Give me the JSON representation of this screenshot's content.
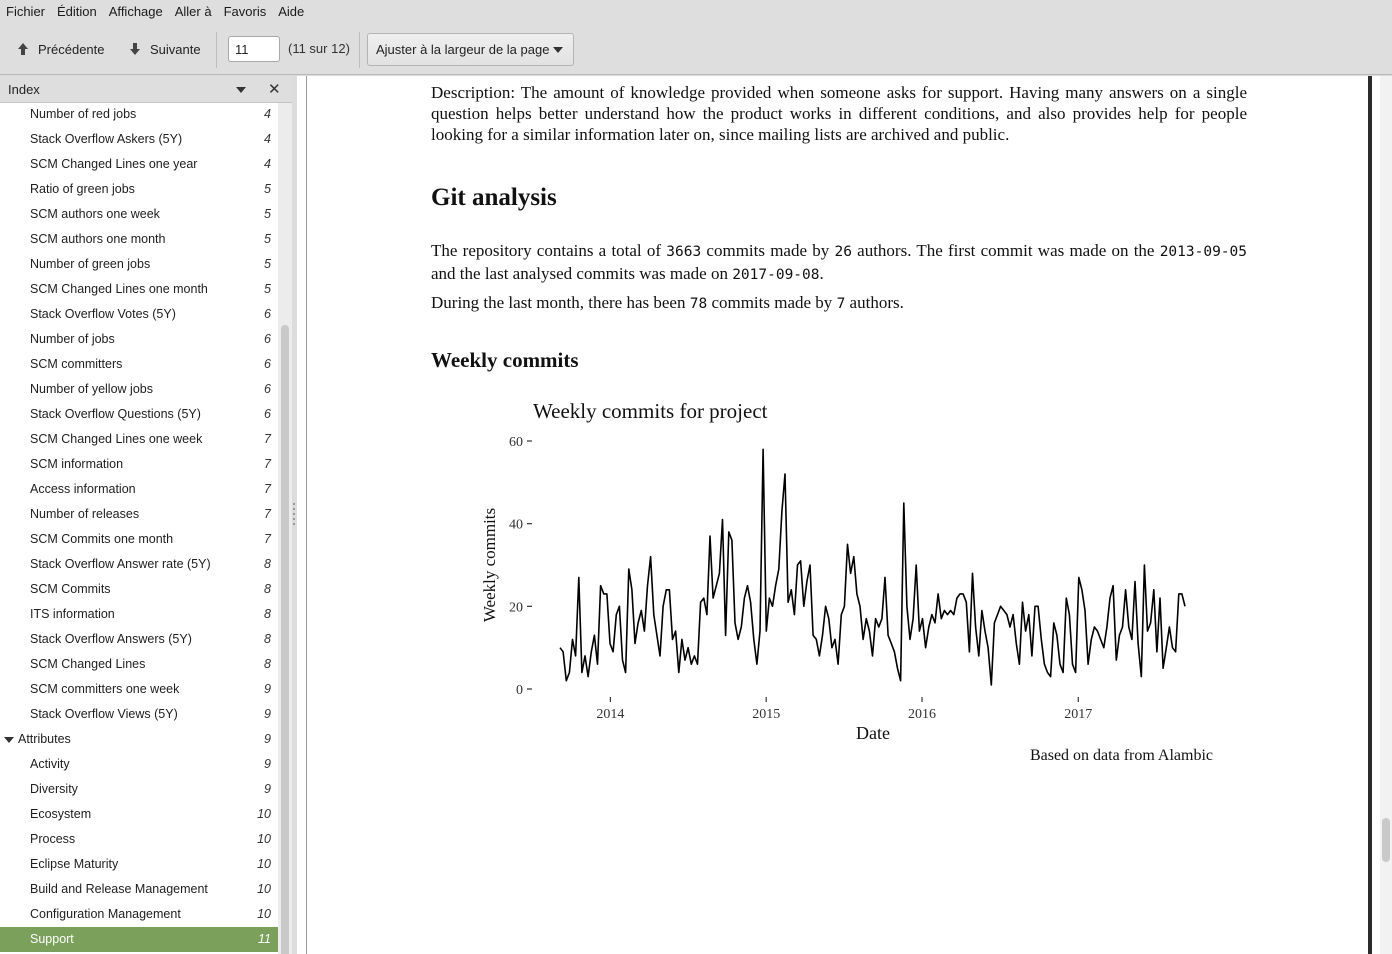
{
  "menu": [
    "Fichier",
    "Édition",
    "Affichage",
    "Aller à",
    "Favoris",
    "Aide"
  ],
  "toolbar": {
    "prev_label": "Précédente",
    "next_label": "Suivante",
    "page_value": "11",
    "page_count": "(11 sur 12)",
    "zoom_label": "Ajuster à la largeur de la page"
  },
  "sidebar": {
    "title": "Index",
    "items": [
      {
        "label": "Number of red jobs",
        "page": "4"
      },
      {
        "label": "Stack Overflow Askers (5Y)",
        "page": "4"
      },
      {
        "label": "SCM Changed Lines one year",
        "page": "4"
      },
      {
        "label": "Ratio of green jobs",
        "page": "5"
      },
      {
        "label": "SCM authors one week",
        "page": "5"
      },
      {
        "label": "SCM authors one month",
        "page": "5"
      },
      {
        "label": "Number of green jobs",
        "page": "5"
      },
      {
        "label": "SCM Changed Lines one month",
        "page": "5"
      },
      {
        "label": "Stack Overflow Votes (5Y)",
        "page": "6"
      },
      {
        "label": "Number of jobs",
        "page": "6"
      },
      {
        "label": "SCM committers",
        "page": "6"
      },
      {
        "label": "Number of yellow jobs",
        "page": "6"
      },
      {
        "label": "Stack Overflow Questions (5Y)",
        "page": "6"
      },
      {
        "label": "SCM Changed Lines one week",
        "page": "7"
      },
      {
        "label": "SCM information",
        "page": "7"
      },
      {
        "label": "Access information",
        "page": "7"
      },
      {
        "label": "Number of releases",
        "page": "7"
      },
      {
        "label": "SCM Commits one month",
        "page": "7"
      },
      {
        "label": "Stack Overflow Answer rate (5Y)",
        "page": "8"
      },
      {
        "label": "SCM Commits",
        "page": "8"
      },
      {
        "label": "ITS information",
        "page": "8"
      },
      {
        "label": "Stack Overflow Answers (5Y)",
        "page": "8"
      },
      {
        "label": "SCM Changed Lines",
        "page": "8"
      },
      {
        "label": "SCM committers one week",
        "page": "9"
      },
      {
        "label": "Stack Overflow Views (5Y)",
        "page": "9"
      },
      {
        "label": "Attributes",
        "page": "9",
        "parent": true
      },
      {
        "label": "Activity",
        "page": "9"
      },
      {
        "label": "Diversity",
        "page": "9"
      },
      {
        "label": "Ecosystem",
        "page": "10"
      },
      {
        "label": "Process",
        "page": "10"
      },
      {
        "label": "Eclipse Maturity",
        "page": "10"
      },
      {
        "label": "Build and Release Management",
        "page": "10"
      },
      {
        "label": "Configuration Management",
        "page": "10"
      },
      {
        "label": "Support",
        "page": "11",
        "selected": true
      }
    ]
  },
  "doc": {
    "description": "Description: The amount of knowledge provided when someone asks for support. Having many answers on a single question helps better understand how the product works in different conditions, and also provides help for people looking for a similar information later on, since mailing lists are archived and public.",
    "git_heading": "Git analysis",
    "git_p1": {
      "t1": "The repository contains a total of ",
      "commits": "3663",
      "t2": " commits made by ",
      "authors": "26",
      "t3": " authors. The first commit was made on the ",
      "first_date": "2013-09-05",
      "t4": " and the last analysed commits was made on ",
      "last_date": "2017-09-08",
      "t5": "."
    },
    "git_p2": {
      "t1": "During the last month, there has been ",
      "commits": "78",
      "t2": " commits made by ",
      "authors": "7",
      "t3": " authors."
    },
    "weekly_heading": "Weekly commits"
  },
  "chart_data": {
    "type": "line",
    "title": "Weekly commits for project",
    "xlabel": "Date",
    "ylabel": "Weekly commits",
    "caption": "Based on data from Alambic",
    "x_ticks": [
      "2014",
      "2015",
      "2016",
      "2017"
    ],
    "y_ticks": [
      "0",
      "20",
      "40",
      "60"
    ],
    "ylim": [
      0,
      60
    ],
    "xlim": [
      "2013-09-05",
      "2017-09-08"
    ],
    "series": [
      {
        "values": [
          10,
          9,
          2,
          4,
          12,
          8,
          27,
          4,
          8,
          3,
          9,
          13,
          6,
          25,
          23,
          23,
          11,
          9,
          18,
          20,
          7,
          4,
          29,
          24,
          11,
          16,
          19,
          14,
          25,
          32,
          18,
          13,
          8,
          20,
          24,
          24,
          12,
          14,
          4,
          12,
          7,
          10,
          6,
          8,
          6,
          21,
          22,
          18,
          37,
          22,
          25,
          28,
          41,
          13,
          38,
          36,
          16,
          12,
          15,
          22,
          25,
          21,
          12,
          6,
          14,
          58,
          14,
          22,
          20,
          25,
          29,
          43,
          52,
          21,
          24,
          18,
          30,
          31,
          20,
          26,
          30,
          13,
          12,
          8,
          13,
          20,
          17,
          10,
          12,
          6,
          18,
          20,
          35,
          28,
          32,
          23,
          20,
          12,
          17,
          14,
          8,
          17,
          15,
          17,
          27,
          13,
          11,
          9,
          5,
          2,
          45,
          20,
          12,
          17,
          30,
          14,
          17,
          10,
          15,
          18,
          16,
          23,
          17,
          19,
          18,
          19,
          18,
          22,
          23,
          23,
          21,
          9,
          28,
          15,
          8,
          19,
          14,
          10,
          1,
          16,
          18,
          20,
          19,
          18,
          15,
          18,
          11,
          6,
          21,
          14,
          18,
          8,
          20,
          20,
          12,
          6,
          4,
          3,
          16,
          13,
          6,
          4,
          22,
          18,
          6,
          4,
          27,
          24,
          19,
          6,
          12,
          15,
          14,
          12,
          10,
          15,
          22,
          25,
          7,
          13,
          15,
          24,
          15,
          12,
          26,
          11,
          3,
          30,
          14,
          16,
          24,
          9,
          22,
          5,
          10,
          15,
          10,
          9,
          23,
          23,
          20
        ]
      }
    ]
  }
}
